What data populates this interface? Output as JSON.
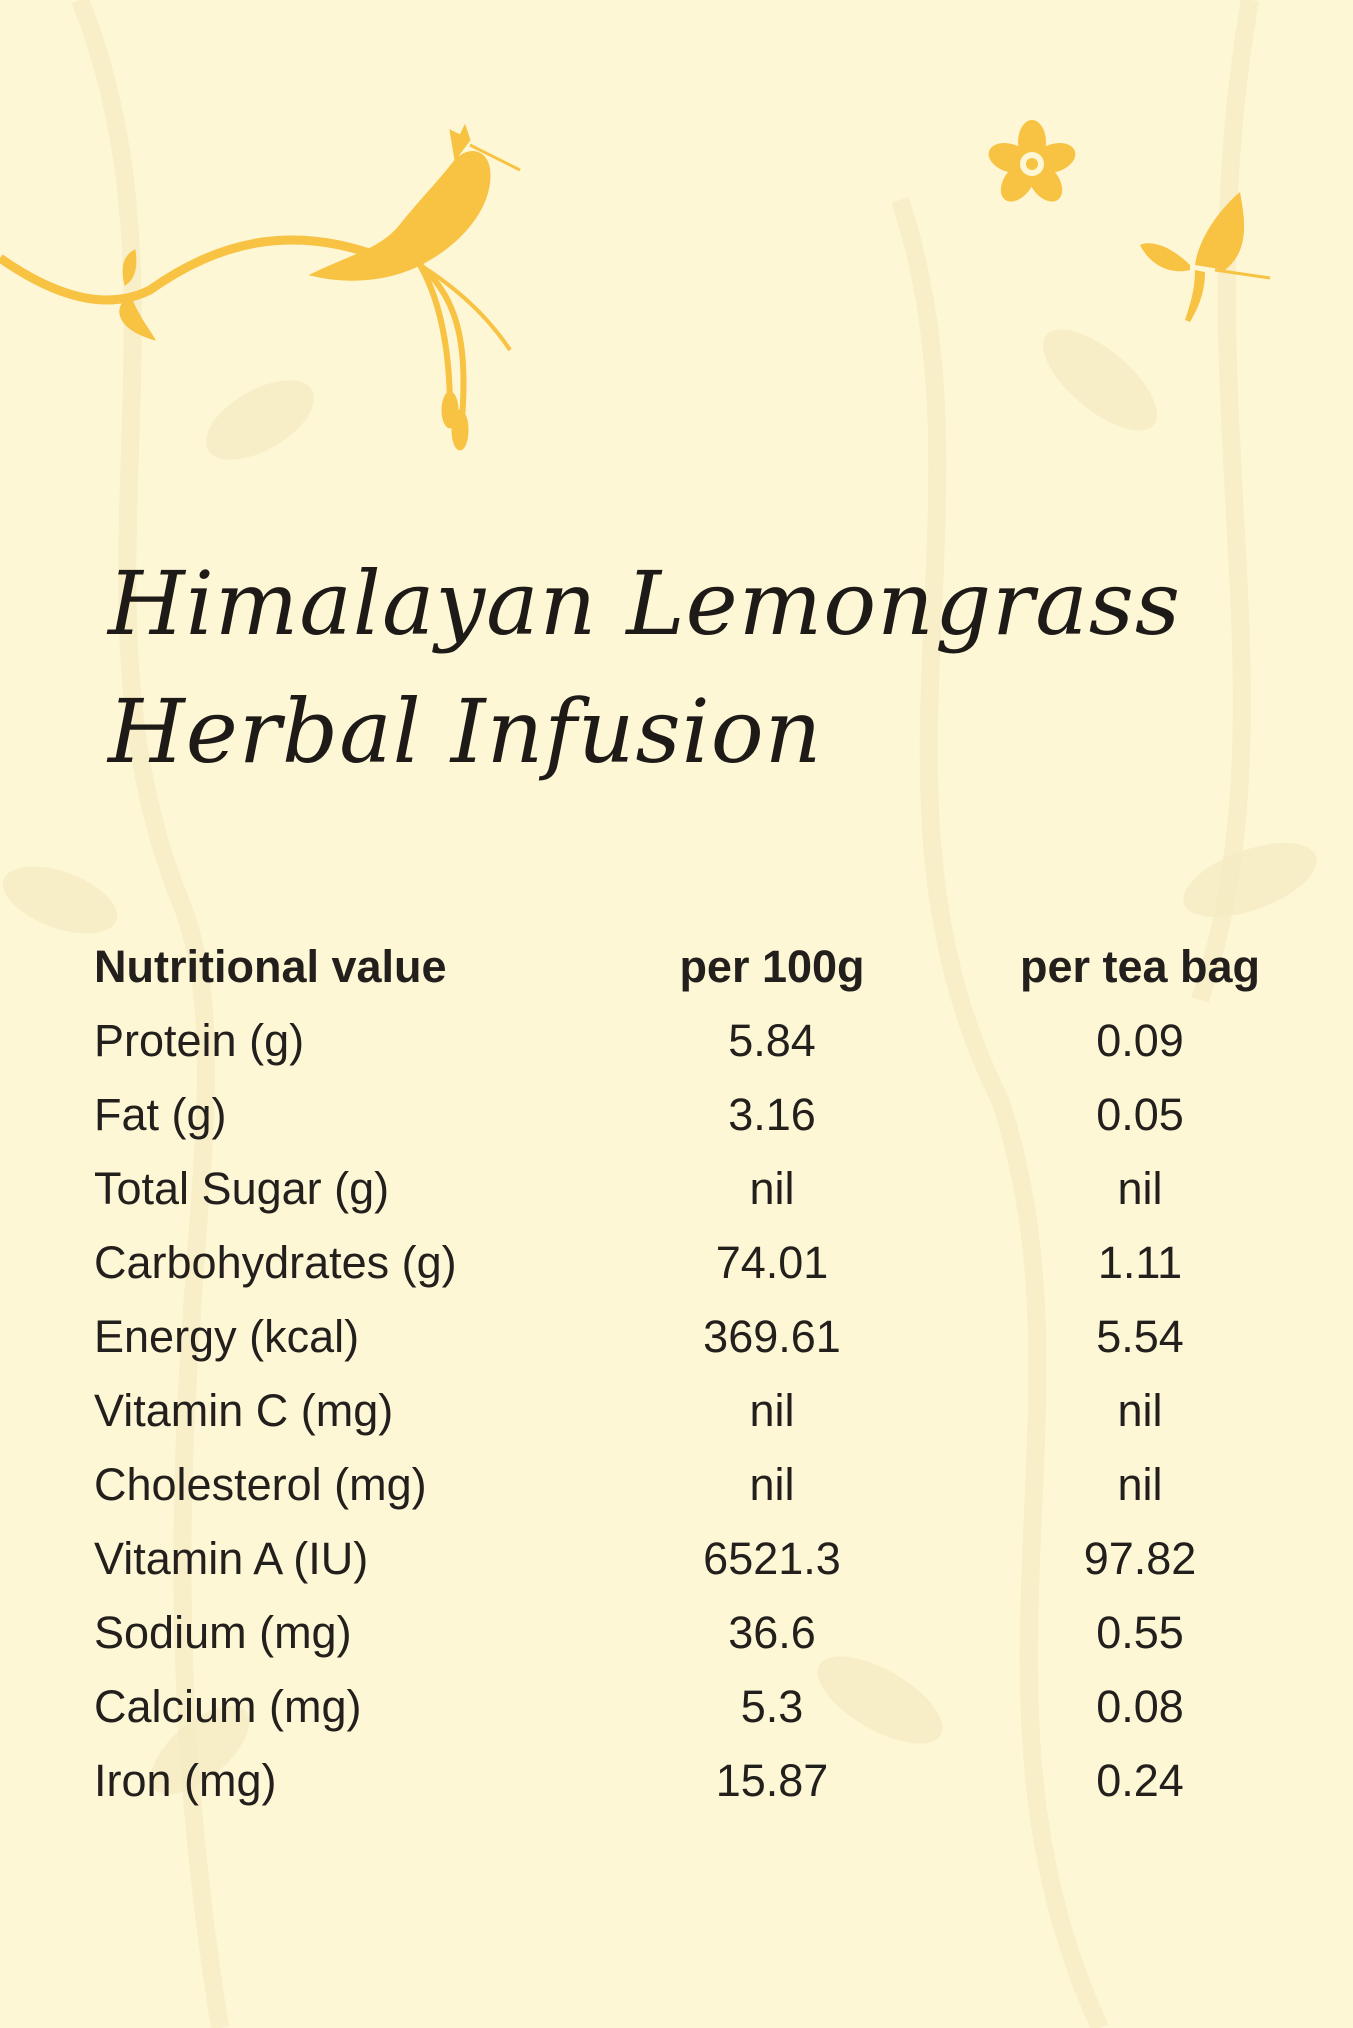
{
  "colors": {
    "background": "#fdf7d6",
    "accent": "#f8c243",
    "pattern": "#f7ecc6",
    "text": "#231f1c"
  },
  "decorations": [
    "bird-on-branch-icon",
    "flower-icon",
    "butterfly-icon"
  ],
  "title": {
    "line1": "Himalayan Lemongrass",
    "line2": "Herbal Infusion"
  },
  "table": {
    "headers": [
      "Nutritional value",
      "per 100g",
      "per tea bag"
    ],
    "rows": [
      [
        "Protein (g)",
        "5.84",
        "0.09"
      ],
      [
        "Fat (g)",
        "3.16",
        "0.05"
      ],
      [
        "Total Sugar (g)",
        "nil",
        "nil"
      ],
      [
        "Carbohydrates (g)",
        "74.01",
        "1.11"
      ],
      [
        "Energy (kcal)",
        "369.61",
        "5.54"
      ],
      [
        "Vitamin C (mg)",
        "nil",
        "nil"
      ],
      [
        "Cholesterol (mg)",
        "nil",
        "nil"
      ],
      [
        "Vitamin A (IU)",
        "6521.3",
        "97.82"
      ],
      [
        "Sodium (mg)",
        "36.6",
        "0.55"
      ],
      [
        "Calcium (mg)",
        "5.3",
        "0.08"
      ],
      [
        "Iron (mg)",
        "15.87",
        "0.24"
      ]
    ]
  }
}
